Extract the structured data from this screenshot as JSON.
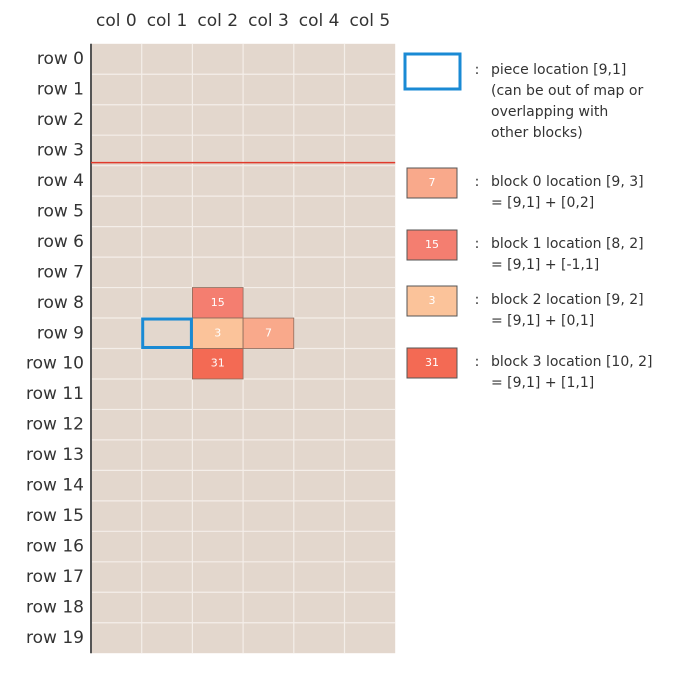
{
  "columns": [
    "col 0",
    "col 1",
    "col 2",
    "col 3",
    "col 4",
    "col 5"
  ],
  "rows": [
    "row 0",
    "row 1",
    "row 2",
    "row 3",
    "row 4",
    "row 5",
    "row 6",
    "row 7",
    "row 8",
    "row 9",
    "row 10",
    "row 11",
    "row 12",
    "row 13",
    "row 14",
    "row 15",
    "row 16",
    "row 17",
    "row 18",
    "row 19"
  ],
  "grid_blocks": [
    15,
    3,
    7,
    31
  ],
  "legend": [
    {
      "colon": ":",
      "lines": [
        "piece location [9,1]",
        "(can be out of map or",
        "overlapping with",
        "other blocks)"
      ]
    },
    {
      "swatch": 7,
      "colon": ":",
      "lines": [
        "block 0 location [9, 3]",
        "= [9,1] + [0,2]"
      ]
    },
    {
      "swatch": 15,
      "colon": ":",
      "lines": [
        "block 1 location [8, 2]",
        "= [9,1] + [-1,1]"
      ]
    },
    {
      "swatch": 3,
      "colon": ":",
      "lines": [
        "block 2 location [9, 2]",
        "= [9,1] + [0,1]"
      ]
    },
    {
      "swatch": 31,
      "colon": ":",
      "lines": [
        "block 3 location [10, 2]",
        "= [9,1] + [1,1]"
      ]
    }
  ]
}
